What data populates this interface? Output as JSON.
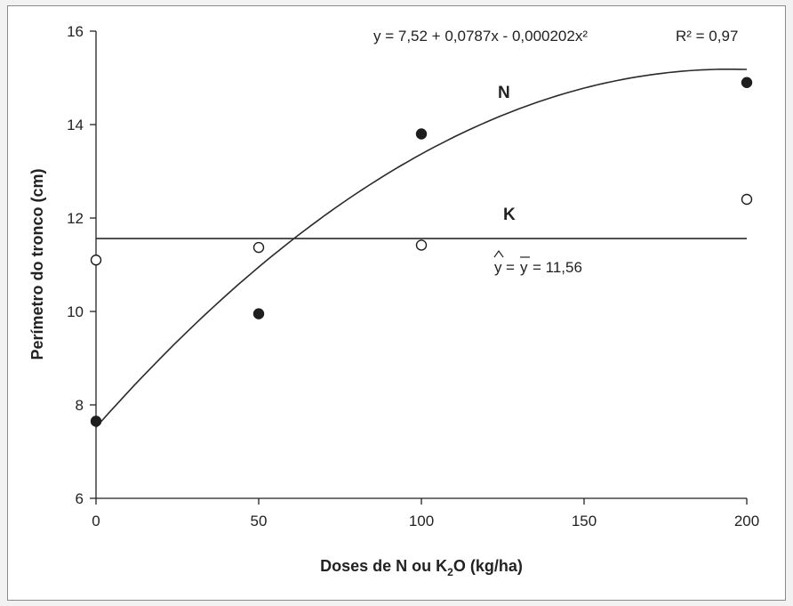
{
  "chart_data": {
    "type": "scatter",
    "title": "",
    "xlabel": "Doses de N ou K",
    "xlabel_sub": "2",
    "xlabel_suffix": "O (kg/ha)",
    "ylabel": "Perímetro do tronco (cm)",
    "xlim": [
      0,
      200
    ],
    "ylim": [
      6,
      16
    ],
    "x_ticks": [
      0,
      50,
      100,
      150,
      200
    ],
    "y_ticks": [
      6,
      8,
      10,
      12,
      14,
      16
    ],
    "grid": false,
    "series": [
      {
        "name": "N",
        "marker": "filled-circle",
        "x": [
          0,
          50,
          100,
          200
        ],
        "y": [
          7.65,
          9.95,
          13.8,
          14.9
        ],
        "fit": {
          "type": "quadratic",
          "coefficients": [
            7.52,
            0.0787,
            -0.000202
          ]
        },
        "equation": "y = 7,52 + 0,0787x - 0,000202x²",
        "r2": "R² = 0,97"
      },
      {
        "name": "K",
        "marker": "open-circle",
        "x": [
          0,
          50,
          100,
          200
        ],
        "y": [
          11.1,
          11.37,
          11.42,
          12.4
        ],
        "fit": {
          "type": "constant",
          "value": 11.56
        },
        "equation_value": "= 11,56"
      }
    ]
  }
}
